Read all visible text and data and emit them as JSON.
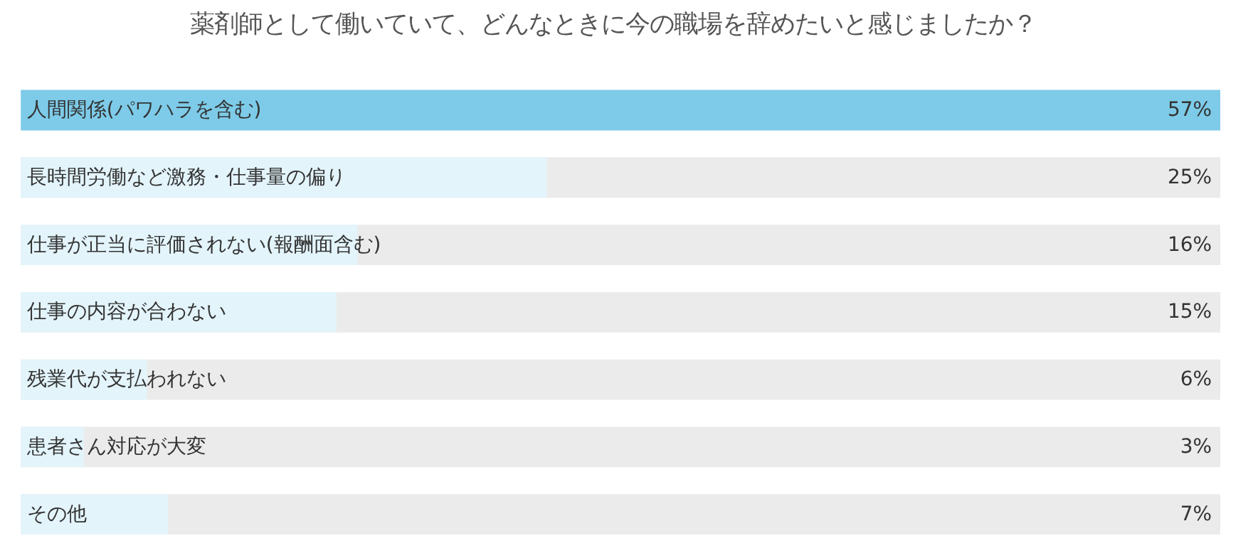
{
  "chart_data": {
    "type": "bar",
    "orientation": "horizontal",
    "title": "薬剤師として働いていて、どんなときに今の職場を辞めたいと感じましたか？",
    "categories": [
      "人間関係(パワハラを含む)",
      "長時間労働など激務・仕事量の偏り",
      "仕事が正当に評価されない(報酬面含む)",
      "仕事の内容が合わない",
      "残業代が支払われない",
      "患者さん対応が大変",
      "その他"
    ],
    "values": [
      57,
      25,
      16,
      15,
      6,
      3,
      7
    ],
    "value_labels": [
      "57%",
      "25%",
      "16%",
      "15%",
      "6%",
      "3%",
      "7%"
    ],
    "colors": [
      "#7dcbe8",
      "#e3f4fb",
      "#e3f4fb",
      "#e3f4fb",
      "#e3f4fb",
      "#e3f4fb",
      "#e3f4fb"
    ]
  }
}
